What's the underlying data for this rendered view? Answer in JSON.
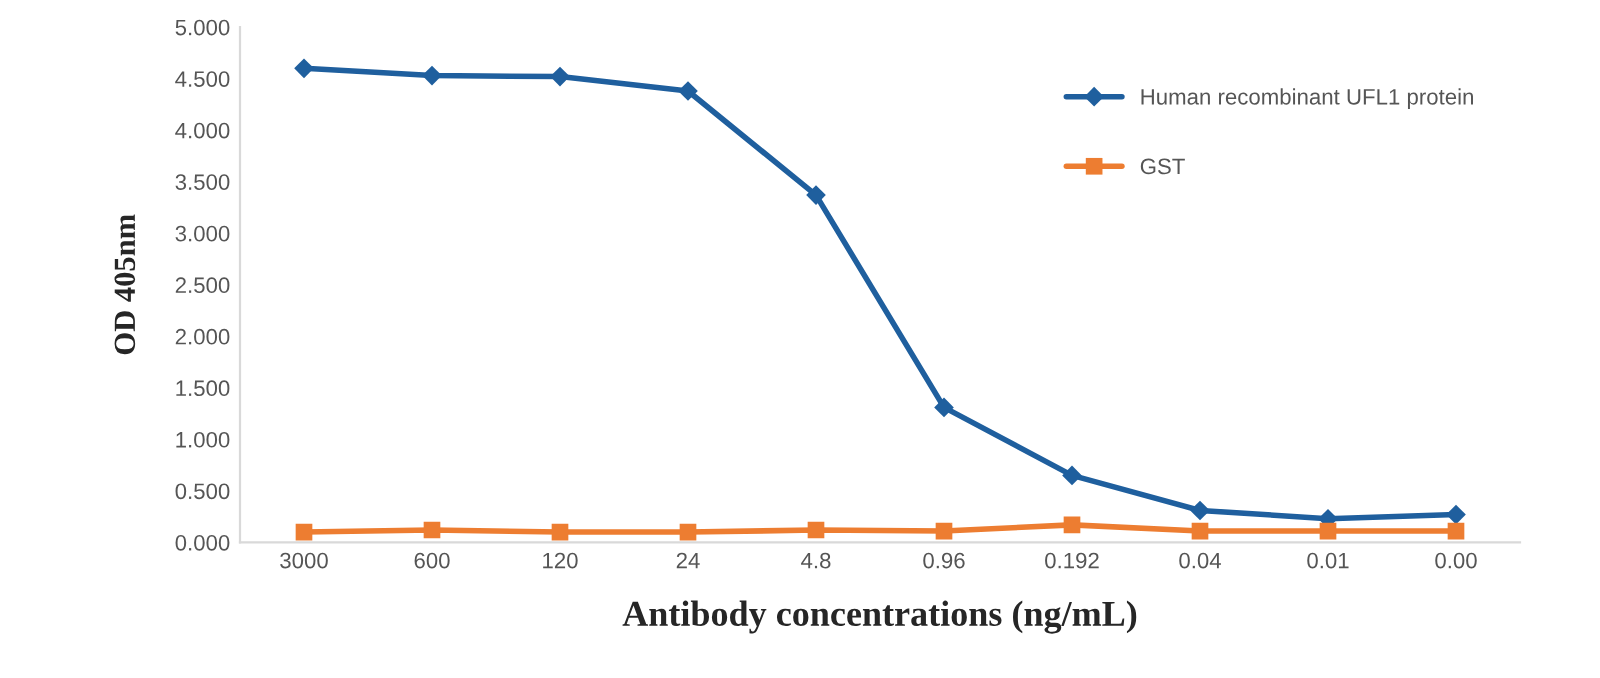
{
  "chart_data": {
    "type": "line",
    "xlabel": "Antibody concentrations (ng/mL)",
    "ylabel": "OD 405nm",
    "categories": [
      "3000",
      "600",
      "120",
      "24",
      "4.8",
      "0.96",
      "0.192",
      "0.04",
      "0.01",
      "0.00"
    ],
    "series": [
      {
        "name": "Human recombinant UFL1 protein",
        "color": "#1f5f9e",
        "marker": "diamond",
        "values": [
          4.6,
          4.53,
          4.52,
          4.38,
          3.37,
          1.31,
          0.65,
          0.31,
          0.23,
          0.27
        ]
      },
      {
        "name": "GST",
        "color": "#ed7d31",
        "marker": "square",
        "values": [
          0.1,
          0.12,
          0.1,
          0.1,
          0.12,
          0.11,
          0.17,
          0.11,
          0.11,
          0.11
        ]
      }
    ],
    "ylim": [
      0,
      5
    ],
    "yticks": [
      {
        "value": 0,
        "label": "0.000"
      },
      {
        "value": 0.5,
        "label": "0.500"
      },
      {
        "value": 1,
        "label": "1.000"
      },
      {
        "value": 1.5,
        "label": "1.500"
      },
      {
        "value": 2,
        "label": "2.000"
      },
      {
        "value": 2.5,
        "label": "2.500"
      },
      {
        "value": 3,
        "label": "3.000"
      },
      {
        "value": 3.5,
        "label": "3.500"
      },
      {
        "value": 4,
        "label": "4.000"
      },
      {
        "value": 4.5,
        "label": "4.500"
      },
      {
        "value": 5,
        "label": "5.000"
      }
    ],
    "grid": false,
    "legend": "top right"
  }
}
